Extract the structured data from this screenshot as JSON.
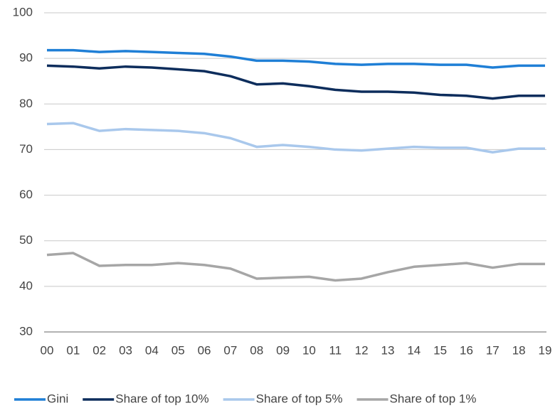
{
  "chart_data": {
    "type": "line",
    "categories": [
      "00",
      "01",
      "02",
      "03",
      "04",
      "05",
      "06",
      "07",
      "08",
      "09",
      "10",
      "11",
      "12",
      "13",
      "14",
      "15",
      "16",
      "17",
      "18",
      "19"
    ],
    "series": [
      {
        "name": "Gini",
        "color": "#1f7fd6",
        "values": [
          91.8,
          91.8,
          91.4,
          91.6,
          91.4,
          91.2,
          91.0,
          90.4,
          89.5,
          89.5,
          89.3,
          88.8,
          88.6,
          88.8,
          88.8,
          88.6,
          88.6,
          88.0,
          88.4,
          88.4
        ]
      },
      {
        "name": "Share of top 10%",
        "color": "#0d2d5c",
        "values": [
          88.4,
          88.2,
          87.8,
          88.2,
          88.0,
          87.6,
          87.2,
          86.1,
          84.3,
          84.5,
          83.9,
          83.1,
          82.7,
          82.7,
          82.5,
          82.0,
          81.8,
          81.2,
          81.8,
          81.8
        ]
      },
      {
        "name": "Share of top 5%",
        "color": "#a9c8ec",
        "values": [
          75.6,
          75.8,
          74.1,
          74.5,
          74.3,
          74.1,
          73.6,
          72.5,
          70.6,
          71.0,
          70.6,
          70.0,
          69.8,
          70.2,
          70.6,
          70.4,
          70.4,
          69.4,
          70.2,
          70.2
        ]
      },
      {
        "name": "Share of top 1%",
        "color": "#a6a6a6",
        "values": [
          46.9,
          47.3,
          44.5,
          44.7,
          44.7,
          45.1,
          44.7,
          43.9,
          41.7,
          41.9,
          42.1,
          41.3,
          41.7,
          43.1,
          44.3,
          44.7,
          45.1,
          44.1,
          44.9,
          44.9
        ]
      }
    ],
    "ylim": [
      30,
      100
    ],
    "yticks": [
      30,
      40,
      50,
      60,
      70,
      80,
      90,
      100
    ],
    "grid": true,
    "legend": "bottom"
  }
}
